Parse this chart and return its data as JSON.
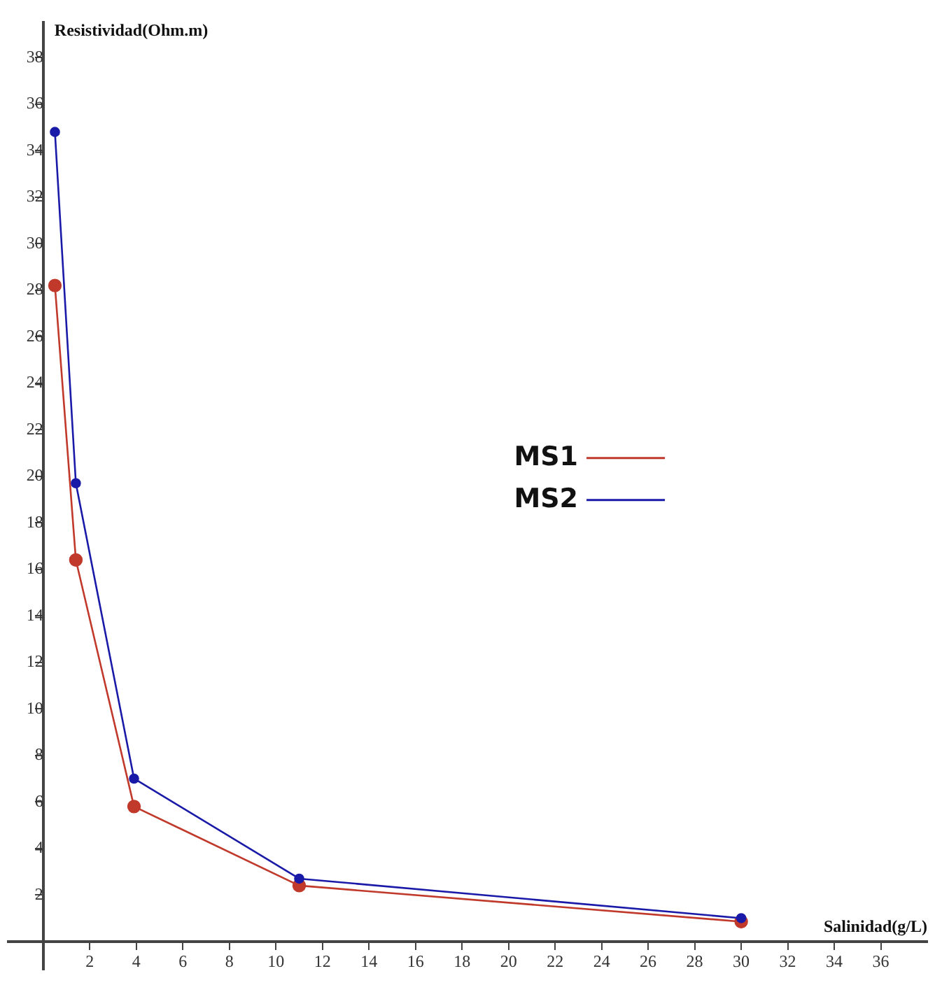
{
  "chart_data": {
    "type": "line",
    "xlabel": "Salinidad(g/L)",
    "ylabel": "Resistividad(Ohm.m)",
    "x": [
      0.5,
      1.4,
      3.9,
      11,
      30
    ],
    "series": [
      {
        "name": "MS1",
        "color": "#c0392b",
        "values": [
          28.2,
          16.4,
          5.8,
          2.4,
          0.85
        ]
      },
      {
        "name": "MS2",
        "color": "#1a1aa8",
        "values": [
          34.8,
          19.7,
          7.0,
          2.7,
          1.0
        ]
      }
    ],
    "xlim": [
      -1.5,
      38
    ],
    "ylim": [
      -1.2,
      39.5
    ],
    "xticks": [
      2,
      4,
      6,
      8,
      10,
      12,
      14,
      16,
      18,
      20,
      22,
      24,
      26,
      28,
      30,
      32,
      34,
      36
    ],
    "yticks": [
      2,
      4,
      6,
      8,
      10,
      12,
      14,
      16,
      18,
      20,
      22,
      24,
      26,
      28,
      30,
      32,
      34,
      36,
      38
    ],
    "legend": "right",
    "marker": "circle",
    "line_style": "solid"
  }
}
